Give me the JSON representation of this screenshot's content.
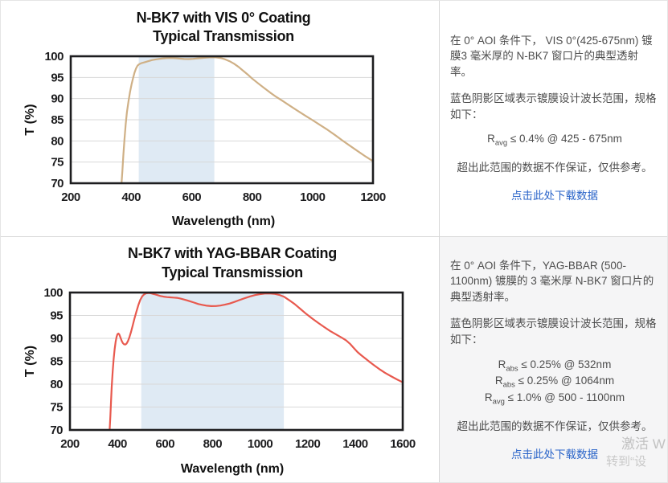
{
  "panels": [
    {
      "desc": "在 0° AOI 条件下， VIS 0°(425-675nm) 镀膜3 毫米厚的 N-BK7 窗口片的典型透射率。",
      "note": "蓝色阴影区域表示镀膜设计波长范围，规格如下：",
      "specs": [
        {
          "base": "R",
          "sub": "avg",
          "rest": " ≤ 0.4% @ 425 - 675nm"
        }
      ],
      "disclaimer": "超出此范围的数据不作保证，仅供参考。",
      "download_link": "点击此处下载数据"
    },
    {
      "desc": "在 0° AOI 条件下，YAG-BBAR (500-1100nm) 镀膜的 3 毫米厚 N-BK7 窗口片的典型透射率。",
      "note": "蓝色阴影区域表示镀膜设计波长范围，规格如下：",
      "specs": [
        {
          "base": "R",
          "sub": "abs",
          "rest": " ≤ 0.25% @ 532nm"
        },
        {
          "base": "R",
          "sub": "abs",
          "rest": " ≤ 0.25% @ 1064nm"
        },
        {
          "base": "R",
          "sub": "avg",
          "rest": " ≤ 1.0% @ 500 - 1100nm"
        }
      ],
      "disclaimer": "超出此范围的数据不作保证，仅供参考。",
      "download_link": "点击此处下载数据"
    }
  ],
  "watermark": {
    "line1": "激活 W",
    "line2": "转到“设"
  },
  "colors": {
    "vis_curve": "#cfb086",
    "yag_curve": "#e8594e",
    "design_band": "#dfeaf4",
    "gridline": "#d8d8d8",
    "plot_border": "#1d1d1f",
    "link": "#2b65c9",
    "row2_bg": "#f5f5f6"
  },
  "chart_data": [
    {
      "type": "line",
      "title_lines": [
        "N-BK7 with VIS 0° Coating",
        "Typical Transmission"
      ],
      "xlabel": "Wavelength (nm)",
      "ylabel": "T (%)",
      "xlim": [
        200,
        1200
      ],
      "ylim": [
        70,
        100
      ],
      "xticks": [
        200,
        400,
        600,
        800,
        1000,
        1200
      ],
      "yticks": [
        70,
        75,
        80,
        85,
        90,
        95,
        100
      ],
      "design_band": [
        425,
        675
      ],
      "band_color": "#dfeaf4",
      "line_color": "#cfb086",
      "grid": "horizontal-only",
      "points": [
        [
          368,
          70
        ],
        [
          371,
          73
        ],
        [
          374,
          76.5
        ],
        [
          378,
          80.5
        ],
        [
          382,
          84
        ],
        [
          386,
          86.8
        ],
        [
          391,
          89.3
        ],
        [
          396,
          91.5
        ],
        [
          401,
          93.3
        ],
        [
          406,
          94.8
        ],
        [
          411,
          96.1
        ],
        [
          416,
          97.1
        ],
        [
          421,
          97.8
        ],
        [
          427,
          98.15
        ],
        [
          435,
          98.4
        ],
        [
          445,
          98.6
        ],
        [
          457,
          98.85
        ],
        [
          470,
          99.1
        ],
        [
          485,
          99.3
        ],
        [
          500,
          99.45
        ],
        [
          515,
          99.55
        ],
        [
          530,
          99.6
        ],
        [
          545,
          99.55
        ],
        [
          560,
          99.45
        ],
        [
          575,
          99.35
        ],
        [
          590,
          99.33
        ],
        [
          605,
          99.4
        ],
        [
          620,
          99.5
        ],
        [
          635,
          99.6
        ],
        [
          650,
          99.7
        ],
        [
          665,
          99.75
        ],
        [
          680,
          99.73
        ],
        [
          695,
          99.6
        ],
        [
          710,
          99.3
        ],
        [
          725,
          98.85
        ],
        [
          740,
          98.25
        ],
        [
          755,
          97.5
        ],
        [
          770,
          96.6
        ],
        [
          785,
          95.7
        ],
        [
          800,
          94.75
        ],
        [
          820,
          93.6
        ],
        [
          840,
          92.5
        ],
        [
          860,
          91.4
        ],
        [
          880,
          90.4
        ],
        [
          900,
          89.5
        ],
        [
          925,
          88.3
        ],
        [
          950,
          87.15
        ],
        [
          975,
          86
        ],
        [
          1000,
          84.9
        ],
        [
          1025,
          83.75
        ],
        [
          1050,
          82.6
        ],
        [
          1075,
          81.35
        ],
        [
          1100,
          80.05
        ],
        [
          1125,
          78.8
        ],
        [
          1150,
          77.55
        ],
        [
          1175,
          76.35
        ],
        [
          1200,
          75.2
        ]
      ]
    },
    {
      "type": "line",
      "title_lines": [
        "N-BK7 with YAG-BBAR Coating",
        "Typical Transmission"
      ],
      "xlabel": "Wavelength (nm)",
      "ylabel": "T (%)",
      "xlim": [
        200,
        1600
      ],
      "ylim": [
        70,
        100
      ],
      "xticks": [
        200,
        400,
        600,
        800,
        1000,
        1200,
        1400,
        1600
      ],
      "yticks": [
        70,
        75,
        80,
        85,
        90,
        95,
        100
      ],
      "design_band": [
        500,
        1100
      ],
      "band_color": "#dfeaf4",
      "line_color": "#e8594e",
      "grid": "horizontal-only",
      "points": [
        [
          367,
          70
        ],
        [
          370,
          73
        ],
        [
          373,
          76.5
        ],
        [
          376,
          79.5
        ],
        [
          380,
          82.8
        ],
        [
          384,
          85.5
        ],
        [
          388,
          87.6
        ],
        [
          392,
          89.2
        ],
        [
          396,
          90.3
        ],
        [
          400,
          90.9
        ],
        [
          404,
          91.05
        ],
        [
          408,
          90.8
        ],
        [
          413,
          90.1
        ],
        [
          418,
          89.4
        ],
        [
          423,
          88.95
        ],
        [
          428,
          88.7
        ],
        [
          433,
          88.65
        ],
        [
          438,
          88.85
        ],
        [
          444,
          89.4
        ],
        [
          450,
          90.2
        ],
        [
          457,
          91.4
        ],
        [
          464,
          92.8
        ],
        [
          472,
          94.4
        ],
        [
          480,
          95.9
        ],
        [
          488,
          97.3
        ],
        [
          496,
          98.4
        ],
        [
          504,
          99.15
        ],
        [
          512,
          99.6
        ],
        [
          521,
          99.85
        ],
        [
          531,
          99.9
        ],
        [
          542,
          99.8
        ],
        [
          554,
          99.65
        ],
        [
          567,
          99.45
        ],
        [
          580,
          99.25
        ],
        [
          594,
          99.1
        ],
        [
          608,
          99
        ],
        [
          622,
          98.95
        ],
        [
          636,
          98.9
        ],
        [
          650,
          98.85
        ],
        [
          664,
          98.7
        ],
        [
          678,
          98.5
        ],
        [
          692,
          98.3
        ],
        [
          707,
          98.05
        ],
        [
          722,
          97.8
        ],
        [
          740,
          97.5
        ],
        [
          758,
          97.3
        ],
        [
          776,
          97.12
        ],
        [
          795,
          97.03
        ],
        [
          814,
          97.05
        ],
        [
          833,
          97.15
        ],
        [
          852,
          97.35
        ],
        [
          872,
          97.6
        ],
        [
          892,
          97.95
        ],
        [
          913,
          98.35
        ],
        [
          935,
          98.75
        ],
        [
          958,
          99.15
        ],
        [
          980,
          99.45
        ],
        [
          1000,
          99.65
        ],
        [
          1020,
          99.78
        ],
        [
          1040,
          99.8
        ],
        [
          1060,
          99.72
        ],
        [
          1080,
          99.5
        ],
        [
          1100,
          99.1
        ],
        [
          1122,
          98.35
        ],
        [
          1145,
          97.5
        ],
        [
          1170,
          96.4
        ],
        [
          1195,
          95.3
        ],
        [
          1220,
          94.3
        ],
        [
          1245,
          93.35
        ],
        [
          1270,
          92.45
        ],
        [
          1295,
          91.6
        ],
        [
          1320,
          90.85
        ],
        [
          1345,
          90.1
        ],
        [
          1362,
          89.55
        ],
        [
          1378,
          88.8
        ],
        [
          1394,
          87.9
        ],
        [
          1410,
          87
        ],
        [
          1426,
          86.3
        ],
        [
          1444,
          85.55
        ],
        [
          1462,
          84.8
        ],
        [
          1480,
          84.1
        ],
        [
          1500,
          83.35
        ],
        [
          1525,
          82.5
        ],
        [
          1550,
          81.75
        ],
        [
          1575,
          81.05
        ],
        [
          1600,
          80.4
        ]
      ]
    }
  ]
}
